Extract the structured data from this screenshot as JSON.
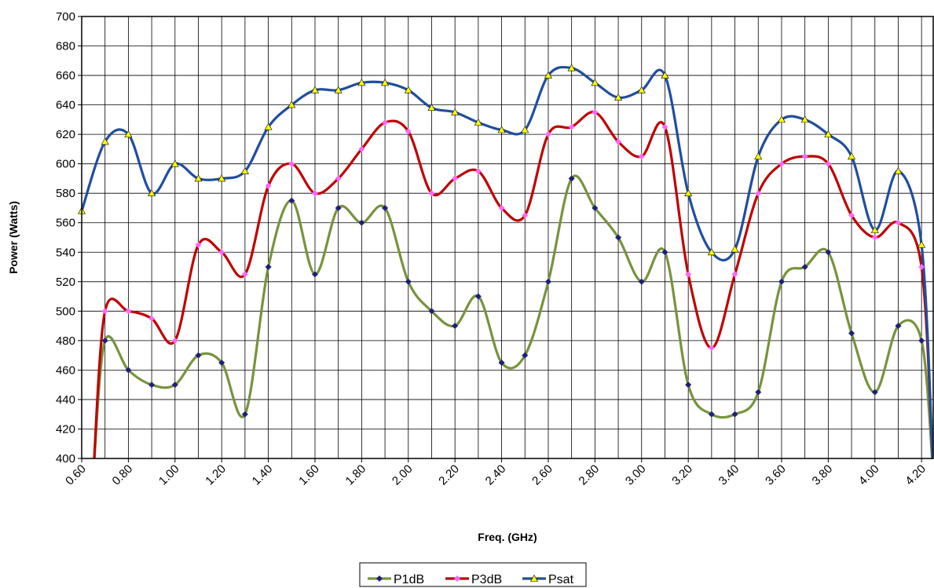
{
  "chart_data": {
    "type": "line",
    "title": "",
    "xlabel": "Freq. (GHz)",
    "ylabel": "Power (Watts)",
    "xlim": [
      0.6,
      4.25
    ],
    "ylim": [
      400,
      700
    ],
    "grid": true,
    "legend_position": "bottom",
    "x_ticks": [
      "0.60",
      "0.80",
      "1.00",
      "1.20",
      "1.40",
      "1.60",
      "1.80",
      "2.00",
      "2.20",
      "2.40",
      "2.60",
      "2.80",
      "3.00",
      "3.20",
      "3.40",
      "3.60",
      "3.80",
      "4.00",
      "4.20"
    ],
    "y_ticks": [
      "400",
      "420",
      "440",
      "460",
      "480",
      "500",
      "520",
      "540",
      "560",
      "580",
      "600",
      "620",
      "640",
      "660",
      "680",
      "700"
    ],
    "x": [
      0.7,
      0.8,
      0.9,
      1.0,
      1.1,
      1.2,
      1.3,
      1.4,
      1.5,
      1.6,
      1.7,
      1.8,
      1.9,
      2.0,
      2.1,
      2.2,
      2.3,
      2.4,
      2.5,
      2.6,
      2.7,
      2.8,
      2.9,
      3.0,
      3.1,
      3.2,
      3.3,
      3.4,
      3.5,
      3.6,
      3.7,
      3.8,
      3.9,
      4.0,
      4.1,
      4.2
    ],
    "series": [
      {
        "name": "P1dB",
        "color": "#77933C",
        "marker_color": "#1F1F7A",
        "marker": "diamond",
        "start": [
          0.65,
          390
        ],
        "end": [
          4.25,
          390
        ],
        "values": [
          480,
          460,
          450,
          450,
          470,
          465,
          430,
          530,
          575,
          525,
          570,
          560,
          570,
          520,
          500,
          490,
          510,
          465,
          470,
          520,
          590,
          570,
          550,
          520,
          540,
          450,
          430,
          430,
          445,
          520,
          530,
          540,
          485,
          445,
          490,
          480
        ]
      },
      {
        "name": "P3dB",
        "color": "#C00000",
        "marker_color": "#FF66FF",
        "marker": "diamond",
        "start": [
          0.65,
          390
        ],
        "end": [
          4.25,
          390
        ],
        "values": [
          500,
          500,
          495,
          480,
          545,
          540,
          525,
          585,
          600,
          580,
          590,
          610,
          628,
          622,
          580,
          590,
          595,
          570,
          565,
          620,
          625,
          635,
          615,
          605,
          625,
          525,
          475,
          525,
          580,
          600,
          605,
          600,
          565,
          550,
          560,
          530
        ]
      },
      {
        "name": "Psat",
        "color": "#1F4E9E",
        "marker_color": "#FFFF00",
        "marker": "triangle",
        "start": [
          0.6,
          568
        ],
        "end": [
          4.25,
          390
        ],
        "values": [
          615,
          620,
          580,
          600,
          590,
          590,
          595,
          625,
          640,
          650,
          650,
          655,
          655,
          650,
          638,
          635,
          628,
          623,
          623,
          660,
          665,
          655,
          645,
          650,
          660,
          580,
          540,
          542,
          605,
          630,
          630,
          620,
          605,
          555,
          595,
          545
        ]
      }
    ]
  }
}
